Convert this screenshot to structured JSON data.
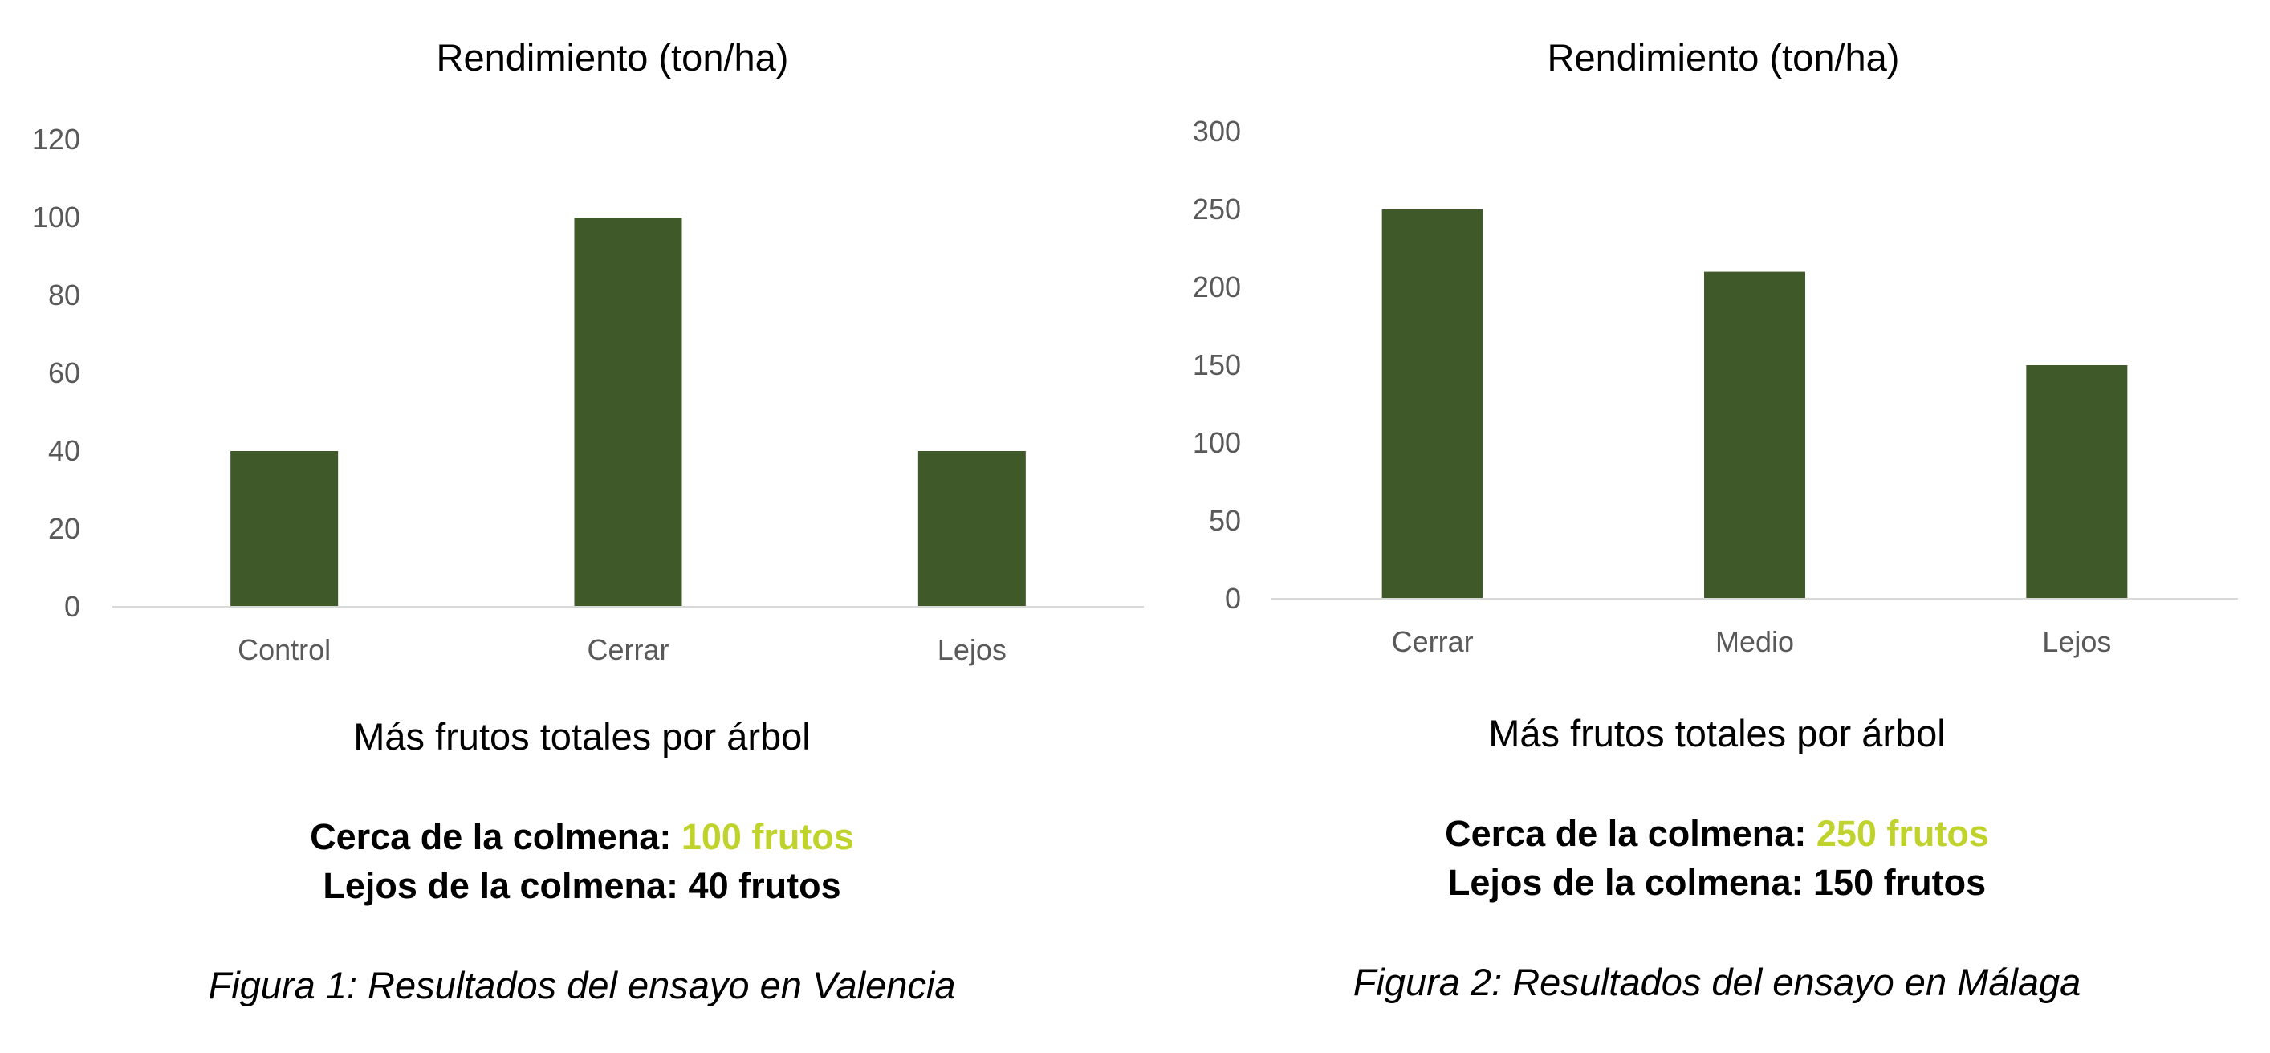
{
  "colors": {
    "bar": "#3F5A28",
    "accent": "#BFD32C",
    "axis_text": "#595959",
    "baseline": "#D9D9D9"
  },
  "chart_data": [
    {
      "type": "bar",
      "title": "Rendimiento (ton/ha)",
      "categories": [
        "Control",
        "Cerrar",
        "Lejos"
      ],
      "values": [
        40,
        100,
        40
      ],
      "xlabel": "",
      "ylabel": "",
      "ylim": [
        0,
        120
      ],
      "yticks": [
        0,
        20,
        40,
        60,
        80,
        100,
        120
      ],
      "grid": false,
      "legend": "none"
    },
    {
      "type": "bar",
      "title": "Rendimiento (ton/ha)",
      "categories": [
        "Cerrar",
        "Medio",
        "Lejos"
      ],
      "values": [
        250,
        210,
        150
      ],
      "xlabel": "",
      "ylabel": "",
      "ylim": [
        0,
        300
      ],
      "yticks": [
        0,
        50,
        100,
        150,
        200,
        250,
        300
      ],
      "grid": false,
      "legend": "none"
    }
  ],
  "panels": [
    {
      "subtitle": "Más frutos totales por árbol",
      "near_label": "Cerca de la colmena: ",
      "near_value": "100 frutos",
      "far_text": "Lejos de la colmena: 40 frutos",
      "caption": "Figura 1: Resultados del ensayo en Valencia"
    },
    {
      "subtitle": "Más frutos totales por árbol",
      "near_label": "Cerca de la colmena: ",
      "near_value": "250 frutos",
      "far_text": "Lejos de la colmena: 150 frutos",
      "caption": "Figura 2: Resultados del ensayo en Málaga"
    }
  ]
}
